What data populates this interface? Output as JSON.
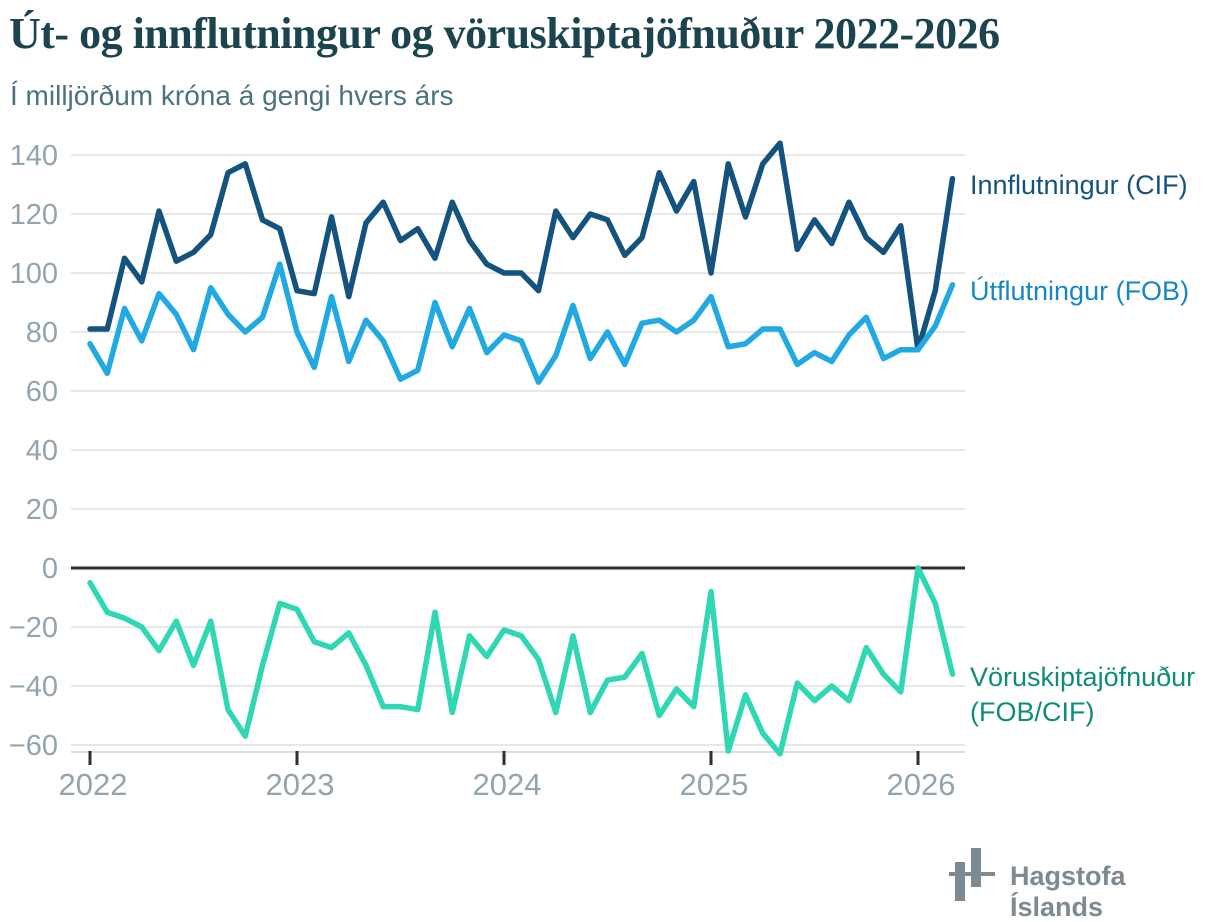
{
  "header": {
    "title": "Út- og innflutningur og vöruskiptajöfnuður 2022-2026",
    "subtitle": "Í milljörðum króna á gengi hvers árs"
  },
  "legend_labels": {
    "cif": "Innflutningur (CIF)",
    "fob": "Útflutningur (FOB)",
    "bal_line1": "Vöruskiptajöfnuður",
    "bal_line2": "(FOB/CIF)"
  },
  "footer": {
    "logo_text": "Hagstofa Íslands"
  },
  "chart_data": {
    "type": "line",
    "title": "Út- og innflutningur og vöruskiptajöfnuður 2022-2026",
    "subtitle": "Í milljörðum króna á gengi hvers árs",
    "unit": "milljarðar króna",
    "x_start": "2022-01",
    "x_frequency": "monthly",
    "x_end": "2026-03",
    "xticks": [
      2022,
      2023,
      2024,
      2025,
      2026
    ],
    "yticks": [
      140,
      120,
      100,
      80,
      60,
      40,
      20,
      0,
      -20,
      -40,
      -60
    ],
    "ylim": [
      -67,
      148
    ],
    "grid": "horizontal",
    "legend_position": "right",
    "series": [
      {
        "name": "Innflutningur (CIF)",
        "color": "#14537d",
        "values": [
          81,
          81,
          105,
          97,
          121,
          104,
          107,
          113,
          134,
          137,
          118,
          115,
          94,
          93,
          119,
          92,
          117,
          124,
          111,
          115,
          105,
          124,
          111,
          103,
          100,
          100,
          94,
          121,
          112,
          120,
          118,
          106,
          112,
          134,
          121,
          131,
          100,
          137,
          119,
          137,
          144,
          108,
          118,
          110,
          124,
          112,
          107,
          116,
          74,
          94,
          132
        ]
      },
      {
        "name": "Útflutningur (FOB)",
        "color": "#21a9e1",
        "values": [
          76,
          66,
          88,
          77,
          93,
          86,
          74,
          95,
          86,
          80,
          85,
          103,
          80,
          68,
          92,
          70,
          84,
          77,
          64,
          67,
          90,
          75,
          88,
          73,
          79,
          77,
          63,
          72,
          89,
          71,
          80,
          69,
          83,
          84,
          80,
          84,
          92,
          75,
          76,
          81,
          81,
          69,
          73,
          70,
          79,
          85,
          71,
          74,
          74,
          82,
          96
        ]
      },
      {
        "name": "Vöruskiptajöfnuður (FOB/CIF)",
        "color": "#2fd7b2",
        "values": [
          -5,
          -15,
          -17,
          -20,
          -28,
          -18,
          -33,
          -18,
          -48,
          -57,
          -33,
          -12,
          -14,
          -25,
          -27,
          -22,
          -33,
          -47,
          -47,
          -48,
          -15,
          -49,
          -23,
          -30,
          -21,
          -23,
          -31,
          -49,
          -23,
          -49,
          -38,
          -37,
          -29,
          -50,
          -41,
          -47,
          -8,
          -62,
          -43,
          -56,
          -63,
          -39,
          -45,
          -40,
          -45,
          -27,
          -36,
          -42,
          0,
          -12,
          -36
        ]
      }
    ]
  }
}
